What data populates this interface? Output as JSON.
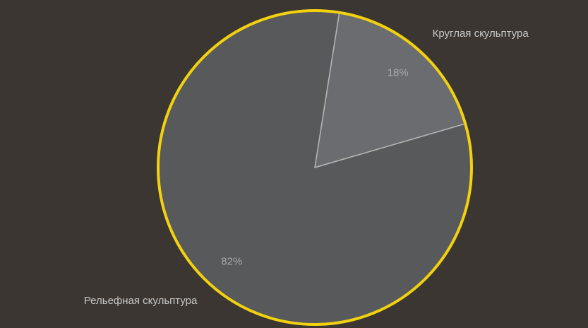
{
  "chart_data": {
    "type": "pie",
    "categories": [
      "Круглая скульптура",
      "Рельефная скульптура"
    ],
    "values": [
      18,
      82
    ],
    "value_labels": [
      "18%",
      "82%"
    ],
    "colors": [
      "#6b6c6f",
      "#58595b"
    ],
    "border_color": "#f2d20f"
  }
}
